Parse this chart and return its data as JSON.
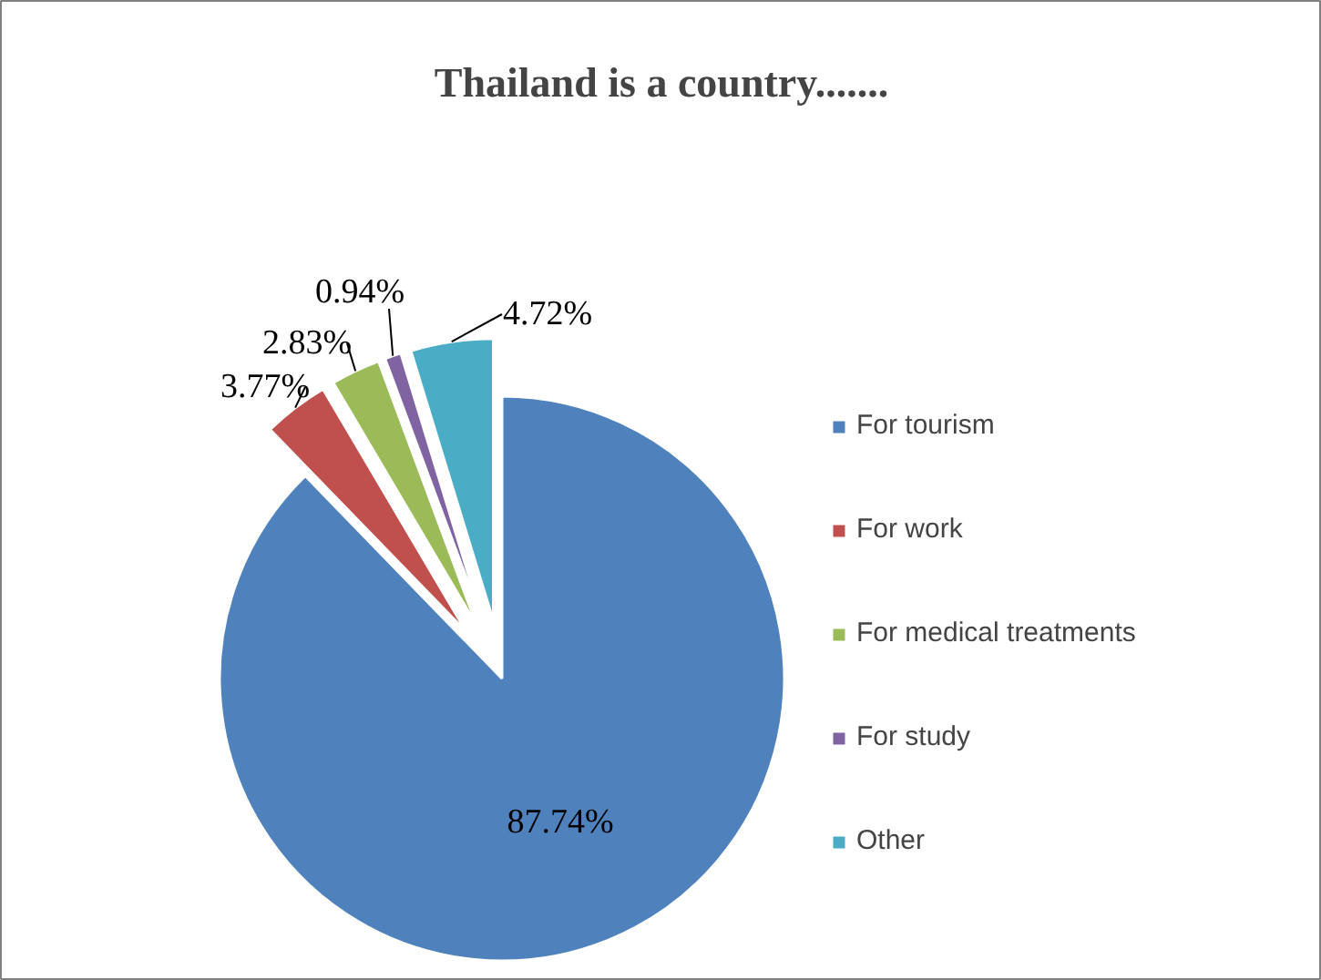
{
  "chart_data": {
    "type": "pie",
    "title": "Thailand is a country.......",
    "categories": [
      "For tourism",
      "For work",
      "For medical treatments",
      "For study",
      "Other"
    ],
    "values": [
      87.74,
      3.77,
      2.83,
      0.94,
      4.72
    ],
    "colors": [
      "#4f81bd",
      "#c0504d",
      "#9bbb59",
      "#8064a2",
      "#4bacc6"
    ],
    "value_labels": [
      "87.74%",
      "3.77%",
      "2.83%",
      "0.94%",
      "4.72%"
    ],
    "legend": "right"
  }
}
